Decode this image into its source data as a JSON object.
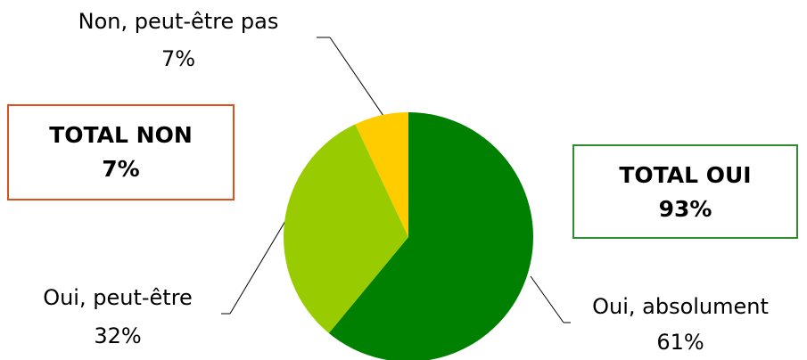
{
  "chart_data": {
    "type": "pie",
    "categories": [
      "Oui, absolument",
      "Oui, peut-être",
      "Non, peut-être pas"
    ],
    "values": [
      61,
      32,
      7
    ],
    "value_labels": [
      "61%",
      "32%",
      "7%"
    ],
    "colors": [
      "#008000",
      "#99cc00",
      "#ffcc00"
    ],
    "annotations": [
      {
        "lines": [
          "TOTAL NON",
          "7%"
        ],
        "color": "#e0501e"
      },
      {
        "lines": [
          "TOTAL OUI",
          "93%"
        ],
        "color": "#2e8b2e"
      }
    ]
  }
}
